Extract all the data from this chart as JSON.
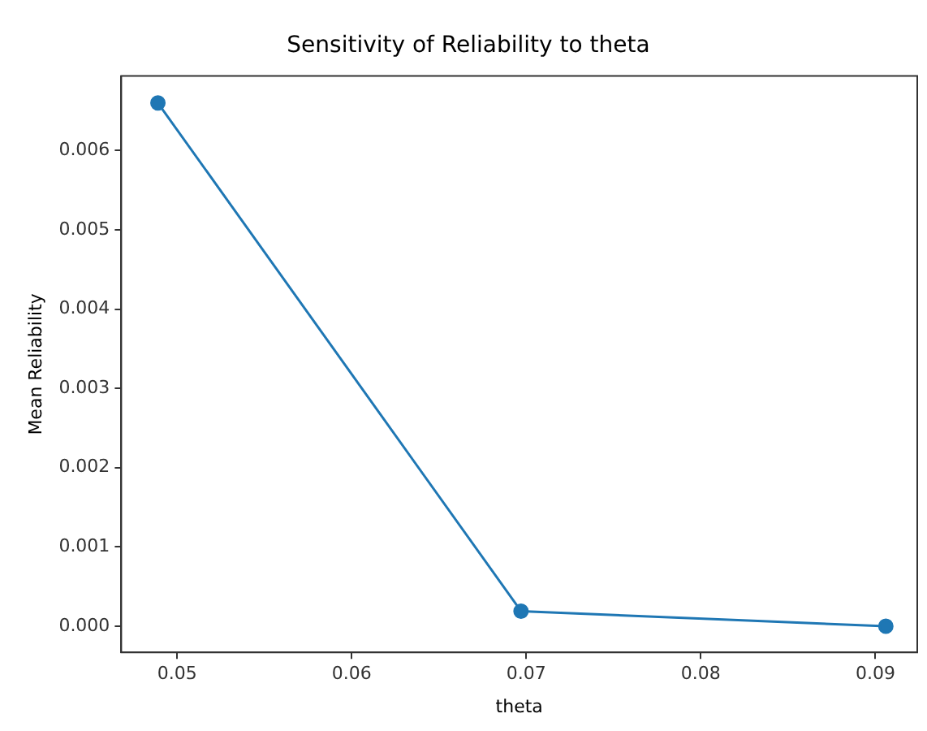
{
  "chart_data": {
    "type": "line",
    "title": "Sensitivity of Reliability to theta",
    "xlabel": "theta",
    "ylabel": "Mean Reliability",
    "x": [
      0.0489,
      0.0697,
      0.0906
    ],
    "series": [
      {
        "color": "#1f77b4",
        "values": [
          0.0066,
          0.00019,
          0
        ]
      }
    ],
    "xlim": [
      0.0468,
      0.0924
    ],
    "xticks": [
      {
        "value": 0.05,
        "label": "0.05"
      },
      {
        "value": 0.06,
        "label": "0.06"
      },
      {
        "value": 0.07,
        "label": "0.07"
      },
      {
        "value": 0.08,
        "label": "0.08"
      },
      {
        "value": 0.09,
        "label": "0.09"
      }
    ],
    "ylim": [
      -0.00033,
      0.00694
    ],
    "yticks": [
      {
        "value": 0,
        "label": "0.000"
      },
      {
        "value": 0.001,
        "label": "0.001"
      },
      {
        "value": 0.002,
        "label": "0.002"
      },
      {
        "value": 0.003,
        "label": "0.003"
      },
      {
        "value": 0.004,
        "label": "0.004"
      },
      {
        "value": 0.005,
        "label": "0.005"
      },
      {
        "value": 0.006,
        "label": "0.006"
      }
    ],
    "grid": false,
    "legend": false,
    "marker": "circle",
    "line_style": "solid"
  }
}
